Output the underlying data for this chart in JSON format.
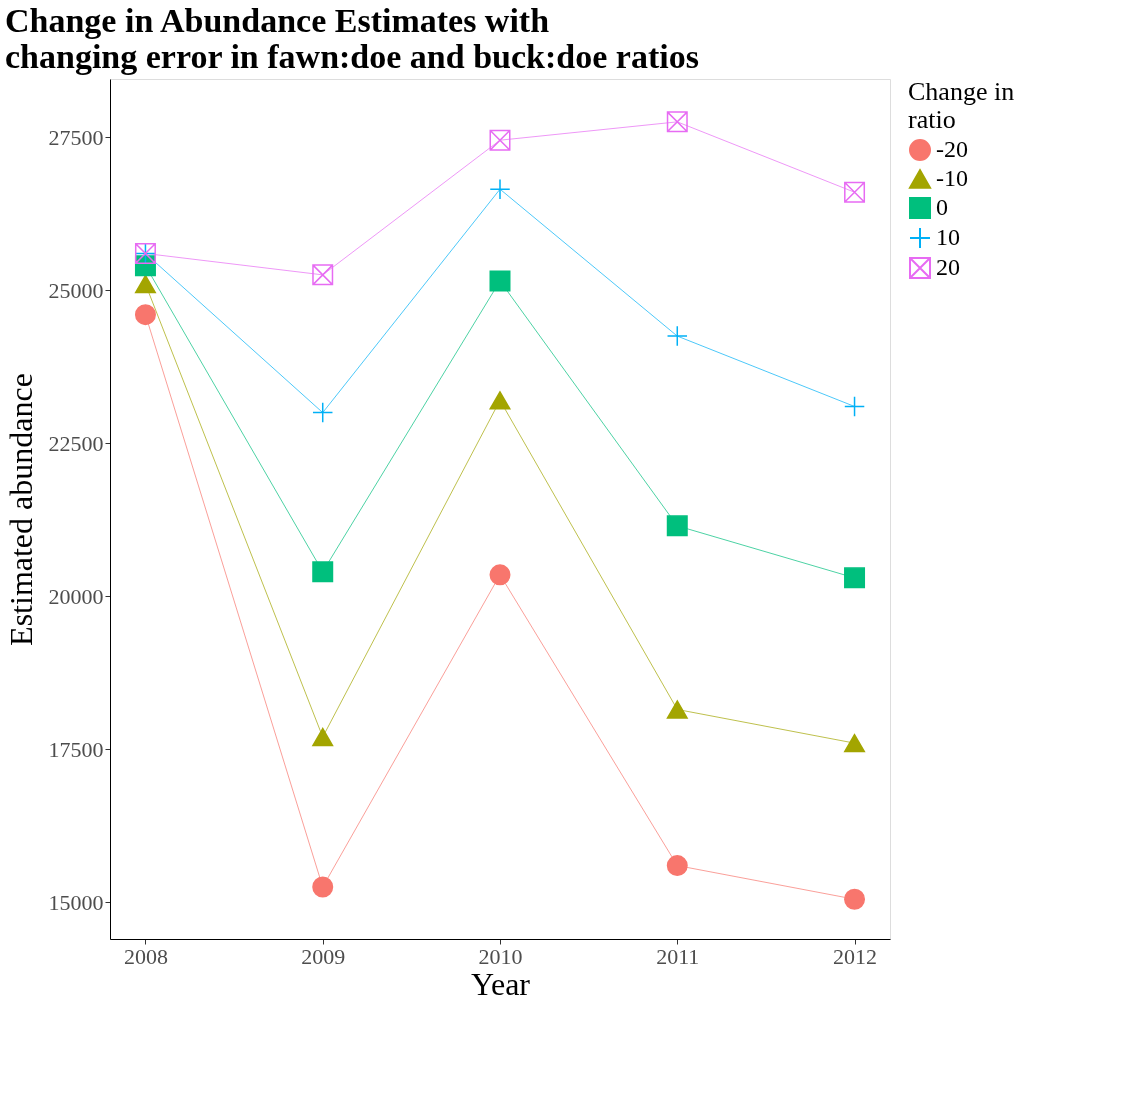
{
  "chart_data": {
    "type": "line",
    "title": "Change in Abundance Estimates with\nchanging error in fawn:doe and buck:doe ratios",
    "xlabel": "Year",
    "ylabel": "Estimated abundance",
    "legend_title": "Change in\nratio",
    "x": [
      2008,
      2009,
      2010,
      2011,
      2012
    ],
    "series": [
      {
        "name": "-20",
        "color": "#f8766d",
        "marker": "circle",
        "values": [
          24600,
          15250,
          20350,
          15600,
          15050
        ]
      },
      {
        "name": "-10",
        "color": "#a3a500",
        "marker": "triangle",
        "values": [
          25100,
          17700,
          23200,
          18150,
          17600
        ]
      },
      {
        "name": "0",
        "color": "#00bf7d",
        "marker": "square",
        "values": [
          25400,
          20400,
          25150,
          21150,
          20300
        ]
      },
      {
        "name": "10",
        "color": "#00b0f6",
        "marker": "cross",
        "values": [
          25600,
          23000,
          26650,
          24250,
          23100
        ]
      },
      {
        "name": "20",
        "color": "#e76bf3",
        "marker": "cross",
        "values": [
          25600,
          25250,
          27450,
          27750,
          26600
        ]
      }
    ],
    "xlim": [
      2007.8,
      2012.2
    ],
    "xticks": [
      2008,
      2009,
      2010,
      2011,
      2012
    ],
    "ylim": [
      14400,
      28450
    ],
    "yticks": [
      15000,
      17500,
      20000,
      22500,
      25000,
      27500
    ],
    "grid": false,
    "legend": "right",
    "line_style": "solid"
  }
}
